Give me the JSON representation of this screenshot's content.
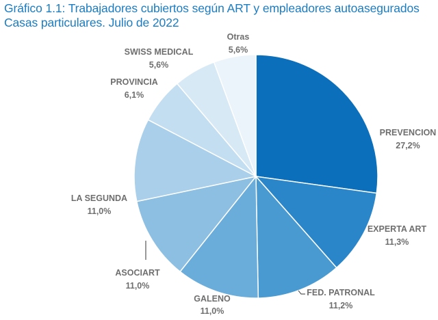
{
  "chart_data": {
    "type": "pie",
    "title": "Gráfico 1.1: Trabajadores cubiertos según ART y empleadores autoasegurados",
    "subtitle": "Casas particulares. Julio de 2022",
    "slices": [
      {
        "label": "PREVENCION",
        "value": 27.2,
        "text": "27,2%",
        "color": "#0b6fbb"
      },
      {
        "label": "EXPERTA ART",
        "value": 11.3,
        "text": "11,3%",
        "color": "#2a86c8"
      },
      {
        "label": "FED. PATRONAL",
        "value": 11.2,
        "text": "11,2%",
        "color": "#4a9ad2"
      },
      {
        "label": "GALENO",
        "value": 11.0,
        "text": "11,0%",
        "color": "#6aacda"
      },
      {
        "label": "ASOCIART",
        "value": 11.0,
        "text": "11,0%",
        "color": "#8cbfe2"
      },
      {
        "label": "LA SEGUNDA",
        "value": 11.0,
        "text": "11,0%",
        "color": "#a9cfea"
      },
      {
        "label": "PROVINCIA",
        "value": 6.1,
        "text": "6,1%",
        "color": "#c4def1"
      },
      {
        "label": "SWISS MEDICAL",
        "value": 5.6,
        "text": "5,6%",
        "color": "#d8e9f6"
      },
      {
        "label": "Otras",
        "value": 5.6,
        "text": "5,6%",
        "color": "#ebf3fb"
      }
    ]
  }
}
